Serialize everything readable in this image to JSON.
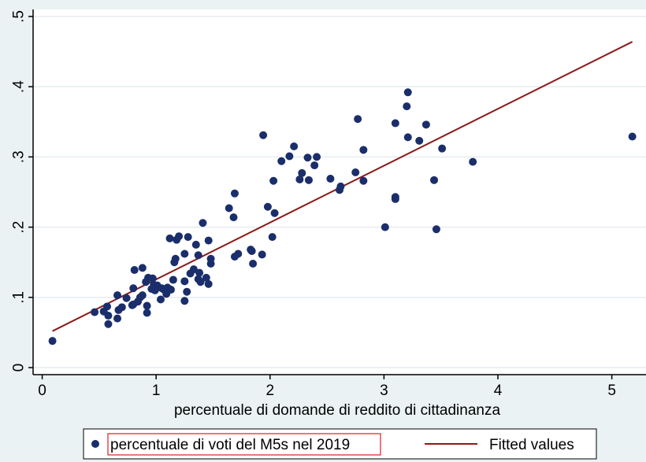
{
  "chart_data": {
    "type": "scatter",
    "xlabel": "percentuale di domande di reddito di cittadinanza",
    "ylabel": "",
    "xlim": [
      -0.08,
      5.3
    ],
    "ylim": [
      -0.01,
      0.51
    ],
    "x_ticks": [
      0,
      1,
      2,
      3,
      4,
      5
    ],
    "x_tick_labels": [
      "0",
      "1",
      "2",
      "3",
      "4",
      "5"
    ],
    "y_ticks": [
      0,
      0.1,
      0.2,
      0.3,
      0.4,
      0.5
    ],
    "y_tick_labels": [
      "0",
      ".1",
      ".2",
      ".3",
      ".4",
      ".5"
    ],
    "grid": "horizontal",
    "legend_position": "bottom",
    "colors": {
      "background": "#eaf2f3",
      "plot_background": "#ffffff",
      "grid": "#e6ecf0",
      "scatter": "#1a2e6b",
      "fit_line": "#8b1a1a"
    },
    "series": [
      {
        "name": "percentuale di voti del M5s nel 2019",
        "type": "scatter",
        "points": [
          [
            0.09,
            0.038
          ],
          [
            0.46,
            0.079
          ],
          [
            0.54,
            0.08
          ],
          [
            0.57,
            0.087
          ],
          [
            0.58,
            0.074
          ],
          [
            0.58,
            0.062
          ],
          [
            0.66,
            0.07
          ],
          [
            0.66,
            0.103
          ],
          [
            0.67,
            0.082
          ],
          [
            0.7,
            0.086
          ],
          [
            0.74,
            0.099
          ],
          [
            0.79,
            0.089
          ],
          [
            0.8,
            0.09
          ],
          [
            0.8,
            0.113
          ],
          [
            0.81,
            0.139
          ],
          [
            0.84,
            0.094
          ],
          [
            0.86,
            0.1
          ],
          [
            0.88,
            0.142
          ],
          [
            0.88,
            0.103
          ],
          [
            0.91,
            0.122
          ],
          [
            0.92,
            0.088
          ],
          [
            0.92,
            0.078
          ],
          [
            0.93,
            0.128
          ],
          [
            0.96,
            0.112
          ],
          [
            0.97,
            0.127
          ],
          [
            0.98,
            0.118
          ],
          [
            0.99,
            0.11
          ],
          [
            1.01,
            0.117
          ],
          [
            1.04,
            0.097
          ],
          [
            1.05,
            0.113
          ],
          [
            1.07,
            0.111
          ],
          [
            1.09,
            0.105
          ],
          [
            1.1,
            0.114
          ],
          [
            1.12,
            0.184
          ],
          [
            1.13,
            0.111
          ],
          [
            1.15,
            0.125
          ],
          [
            1.16,
            0.15
          ],
          [
            1.17,
            0.155
          ],
          [
            1.18,
            0.182
          ],
          [
            1.2,
            0.187
          ],
          [
            1.25,
            0.162
          ],
          [
            1.25,
            0.123
          ],
          [
            1.25,
            0.095
          ],
          [
            1.27,
            0.108
          ],
          [
            1.28,
            0.186
          ],
          [
            1.3,
            0.134
          ],
          [
            1.33,
            0.14
          ],
          [
            1.35,
            0.175
          ],
          [
            1.37,
            0.126
          ],
          [
            1.37,
            0.16
          ],
          [
            1.38,
            0.135
          ],
          [
            1.39,
            0.122
          ],
          [
            1.41,
            0.206
          ],
          [
            1.44,
            0.128
          ],
          [
            1.46,
            0.181
          ],
          [
            1.46,
            0.119
          ],
          [
            1.48,
            0.148
          ],
          [
            1.48,
            0.155
          ],
          [
            1.64,
            0.227
          ],
          [
            1.68,
            0.214
          ],
          [
            1.69,
            0.158
          ],
          [
            1.69,
            0.248
          ],
          [
            1.72,
            0.162
          ],
          [
            1.83,
            0.168
          ],
          [
            1.84,
            0.166
          ],
          [
            1.85,
            0.148
          ],
          [
            1.93,
            0.161
          ],
          [
            1.94,
            0.331
          ],
          [
            1.98,
            0.229
          ],
          [
            2.02,
            0.186
          ],
          [
            2.03,
            0.266
          ],
          [
            2.04,
            0.22
          ],
          [
            2.1,
            0.294
          ],
          [
            2.17,
            0.301
          ],
          [
            2.21,
            0.315
          ],
          [
            2.26,
            0.268
          ],
          [
            2.28,
            0.277
          ],
          [
            2.33,
            0.299
          ],
          [
            2.34,
            0.267
          ],
          [
            2.39,
            0.288
          ],
          [
            2.41,
            0.3
          ],
          [
            2.53,
            0.269
          ],
          [
            2.61,
            0.253
          ],
          [
            2.62,
            0.258
          ],
          [
            2.75,
            0.278
          ],
          [
            2.77,
            0.354
          ],
          [
            2.82,
            0.31
          ],
          [
            2.82,
            0.266
          ],
          [
            3.01,
            0.2
          ],
          [
            3.1,
            0.24
          ],
          [
            3.1,
            0.243
          ],
          [
            3.1,
            0.348
          ],
          [
            3.2,
            0.372
          ],
          [
            3.21,
            0.392
          ],
          [
            3.21,
            0.328
          ],
          [
            3.31,
            0.323
          ],
          [
            3.37,
            0.346
          ],
          [
            3.44,
            0.267
          ],
          [
            3.46,
            0.197
          ],
          [
            3.51,
            0.312
          ],
          [
            3.78,
            0.293
          ],
          [
            5.18,
            0.329
          ]
        ]
      },
      {
        "name": "Fitted values",
        "type": "line",
        "points": [
          [
            0.09,
            0.052
          ],
          [
            5.18,
            0.464
          ]
        ]
      }
    ]
  }
}
